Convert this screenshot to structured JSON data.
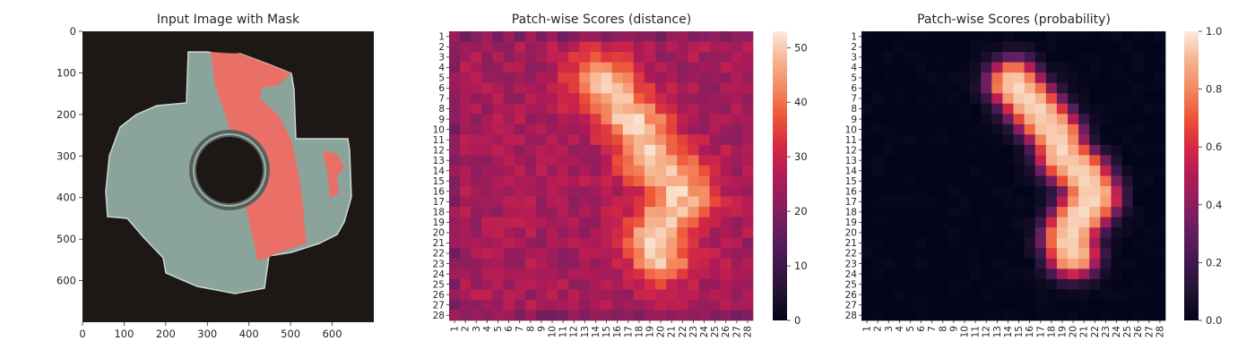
{
  "chart_data": [
    {
      "type": "image",
      "title": "Input Image with Mask",
      "xticks": [
        0,
        100,
        200,
        300,
        400,
        500,
        600
      ],
      "yticks": [
        0,
        100,
        200,
        300,
        400,
        500,
        600
      ],
      "xlim": [
        0,
        700
      ],
      "ylim": [
        700,
        0
      ],
      "image_size": [
        700,
        700
      ],
      "background_color": "#1d1716",
      "object_color": "#8aa49c",
      "mask_color": "#f26a63"
    },
    {
      "type": "heatmap",
      "title": "Patch-wise Scores (distance)",
      "x_tick_labels": [
        "1",
        "2",
        "3",
        "4",
        "5",
        "6",
        "7",
        "8",
        "9",
        "10",
        "11",
        "12",
        "13",
        "14",
        "15",
        "16",
        "17",
        "18",
        "19",
        "20",
        "21",
        "22",
        "23",
        "24",
        "25",
        "26",
        "27",
        "28"
      ],
      "y_tick_labels": [
        "1",
        "2",
        "3",
        "4",
        "5",
        "6",
        "7",
        "8",
        "9",
        "10",
        "11",
        "12",
        "13",
        "14",
        "15",
        "16",
        "17",
        "18",
        "19",
        "20",
        "21",
        "22",
        "23",
        "24",
        "25",
        "26",
        "27",
        "28"
      ],
      "grid_size": [
        28,
        28
      ],
      "approx_value_range": [
        10,
        52
      ],
      "colorbar": {
        "ticks": [
          0,
          10,
          20,
          30,
          40,
          50
        ],
        "range": [
          0,
          53
        ],
        "colormap": "rocket"
      }
    },
    {
      "type": "heatmap",
      "title": "Patch-wise Scores (probability)",
      "x_tick_labels": [
        "1",
        "2",
        "3",
        "4",
        "5",
        "6",
        "7",
        "8",
        "9",
        "10",
        "11",
        "12",
        "13",
        "14",
        "15",
        "16",
        "17",
        "18",
        "19",
        "20",
        "21",
        "22",
        "23",
        "24",
        "25",
        "26",
        "27",
        "28"
      ],
      "y_tick_labels": [
        "1",
        "2",
        "3",
        "4",
        "5",
        "6",
        "7",
        "8",
        "9",
        "10",
        "11",
        "12",
        "13",
        "14",
        "15",
        "16",
        "17",
        "18",
        "19",
        "20",
        "21",
        "22",
        "23",
        "24",
        "25",
        "26",
        "27",
        "28"
      ],
      "grid_size": [
        28,
        28
      ],
      "approx_value_range": [
        0,
        0.98
      ],
      "colorbar": {
        "ticks": [
          "0.0",
          "0.2",
          "0.4",
          "0.6",
          "0.8",
          "1.0"
        ],
        "range": [
          0,
          1
        ],
        "colormap": "rocket"
      }
    }
  ]
}
